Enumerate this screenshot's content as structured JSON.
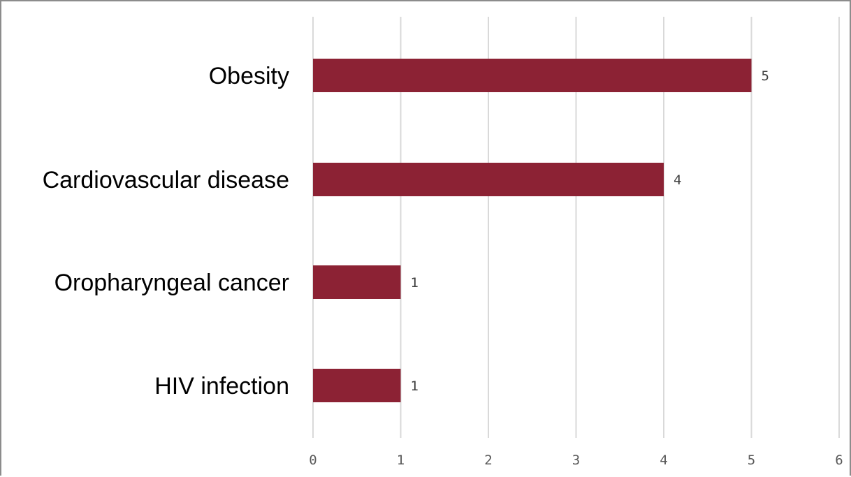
{
  "chart_data": {
    "type": "bar",
    "orientation": "horizontal",
    "categories": [
      "Obesity",
      "Cardiovascular disease",
      "Oropharyngeal cancer",
      "HIV infection"
    ],
    "values": [
      5,
      4,
      1,
      1
    ],
    "data_labels": [
      "5",
      "4",
      "1",
      "1"
    ],
    "xlim": [
      0,
      6
    ],
    "x_ticks": [
      "0",
      "1",
      "2",
      "3",
      "4",
      "5",
      "6"
    ],
    "title": "",
    "xlabel": "",
    "ylabel": "",
    "grid": "vertical",
    "legend": "none",
    "bar_color": "#8c2234",
    "grid_color": "#d9d9d9"
  }
}
